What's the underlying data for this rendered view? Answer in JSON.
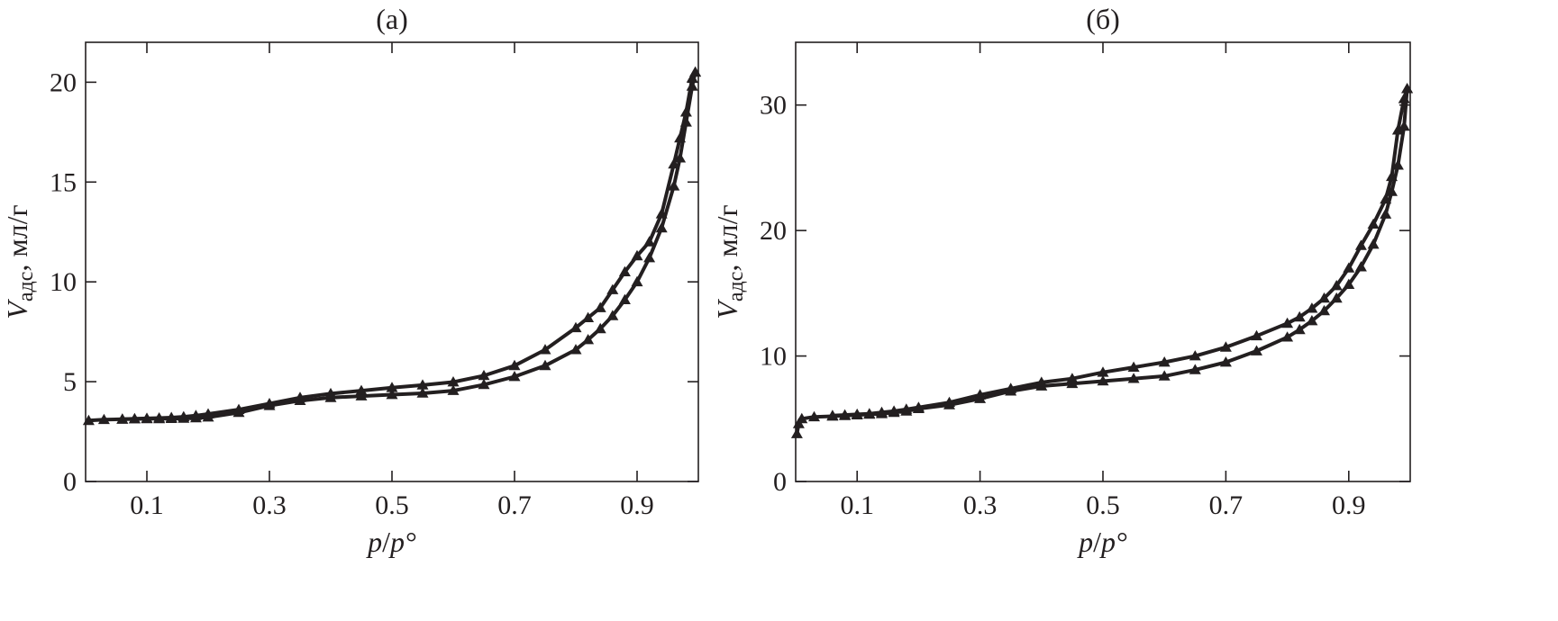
{
  "chart_data": [
    {
      "type": "line",
      "title": "(а)",
      "xlabel_main": "p",
      "xlabel_sep": "/",
      "xlabel_sup": "p°",
      "ylabel_main": "V",
      "ylabel_sub": "адс",
      "ylabel_unit": ", мл/г",
      "xlim": [
        0.0,
        1.0
      ],
      "ylim": [
        0,
        22
      ],
      "x_ticks": [
        0.1,
        0.3,
        0.5,
        0.7,
        0.9
      ],
      "x_tick_labels": [
        "0.1",
        "0.3",
        "0.5",
        "0.7",
        "0.9"
      ],
      "y_ticks": [
        0,
        5,
        10,
        15,
        20
      ],
      "y_tick_labels": [
        "0",
        "5",
        "10",
        "15",
        "20"
      ],
      "series": [
        {
          "x": [
            0.005,
            0.03,
            0.06,
            0.08,
            0.1,
            0.12,
            0.14,
            0.16,
            0.18,
            0.2,
            0.25,
            0.3,
            0.35,
            0.4,
            0.45,
            0.5,
            0.55,
            0.6,
            0.65,
            0.7,
            0.75,
            0.8,
            0.82,
            0.84,
            0.86,
            0.88,
            0.9,
            0.92,
            0.94,
            0.96,
            0.97,
            0.98,
            0.99,
            0.995
          ],
          "y": [
            3.05,
            3.1,
            3.12,
            3.13,
            3.14,
            3.14,
            3.15,
            3.16,
            3.18,
            3.22,
            3.45,
            3.8,
            4.05,
            4.2,
            4.28,
            4.35,
            4.42,
            4.55,
            4.85,
            5.25,
            5.8,
            6.6,
            7.1,
            7.65,
            8.3,
            9.1,
            10.0,
            11.2,
            12.7,
            14.8,
            16.2,
            18.0,
            19.8,
            20.5
          ]
        },
        {
          "x": [
            0.995,
            0.99,
            0.98,
            0.97,
            0.96,
            0.94,
            0.92,
            0.9,
            0.88,
            0.86,
            0.84,
            0.82,
            0.8,
            0.75,
            0.7,
            0.65,
            0.6,
            0.55,
            0.5,
            0.45,
            0.4,
            0.35,
            0.3,
            0.25,
            0.2,
            0.18,
            0.16,
            0.14,
            0.12,
            0.1,
            0.08,
            0.06
          ],
          "y": [
            20.5,
            20.2,
            18.5,
            17.2,
            15.9,
            13.4,
            12.0,
            11.3,
            10.5,
            9.6,
            8.7,
            8.2,
            7.7,
            6.6,
            5.8,
            5.3,
            4.98,
            4.83,
            4.7,
            4.55,
            4.4,
            4.2,
            3.9,
            3.6,
            3.38,
            3.3,
            3.24,
            3.2,
            3.18,
            3.16,
            3.14,
            3.12
          ]
        }
      ]
    },
    {
      "type": "line",
      "title": "(б)",
      "xlabel_main": "p",
      "xlabel_sep": "/",
      "xlabel_sup": "p°",
      "ylabel_main": "V",
      "ylabel_sub": "адс",
      "ylabel_unit": ", мл/г",
      "xlim": [
        0.0,
        1.0
      ],
      "ylim": [
        0,
        35
      ],
      "x_ticks": [
        0.1,
        0.3,
        0.5,
        0.7,
        0.9
      ],
      "x_tick_labels": [
        "0.1",
        "0.3",
        "0.5",
        "0.7",
        "0.9"
      ],
      "y_ticks": [
        0,
        10,
        20,
        30
      ],
      "y_tick_labels": [
        "0",
        "10",
        "20",
        "30"
      ],
      "series": [
        {
          "x": [
            0.002,
            0.005,
            0.01,
            0.03,
            0.06,
            0.08,
            0.1,
            0.12,
            0.14,
            0.16,
            0.18,
            0.2,
            0.25,
            0.3,
            0.35,
            0.4,
            0.45,
            0.5,
            0.55,
            0.6,
            0.65,
            0.7,
            0.75,
            0.8,
            0.82,
            0.84,
            0.86,
            0.88,
            0.9,
            0.92,
            0.94,
            0.96,
            0.97,
            0.98,
            0.99,
            0.995
          ],
          "y": [
            3.8,
            4.6,
            5.0,
            5.15,
            5.2,
            5.25,
            5.3,
            5.35,
            5.4,
            5.5,
            5.6,
            5.8,
            6.1,
            6.6,
            7.2,
            7.6,
            7.8,
            8.0,
            8.2,
            8.4,
            8.9,
            9.5,
            10.4,
            11.5,
            12.1,
            12.8,
            13.6,
            14.6,
            15.7,
            17.1,
            18.9,
            21.3,
            23.1,
            25.2,
            28.3,
            31.3
          ]
        },
        {
          "x": [
            0.995,
            0.99,
            0.98,
            0.97,
            0.96,
            0.94,
            0.92,
            0.9,
            0.88,
            0.86,
            0.84,
            0.82,
            0.8,
            0.75,
            0.7,
            0.65,
            0.6,
            0.55,
            0.5,
            0.45,
            0.4,
            0.35,
            0.3,
            0.25,
            0.2,
            0.18,
            0.16,
            0.14,
            0.12,
            0.1,
            0.08,
            0.06
          ],
          "y": [
            31.3,
            30.5,
            28.0,
            24.3,
            22.5,
            20.5,
            18.8,
            17.0,
            15.6,
            14.6,
            13.8,
            13.1,
            12.6,
            11.6,
            10.7,
            10.0,
            9.5,
            9.1,
            8.7,
            8.2,
            7.9,
            7.4,
            6.9,
            6.3,
            5.9,
            5.75,
            5.6,
            5.5,
            5.4,
            5.35,
            5.3,
            5.25
          ]
        }
      ]
    }
  ]
}
